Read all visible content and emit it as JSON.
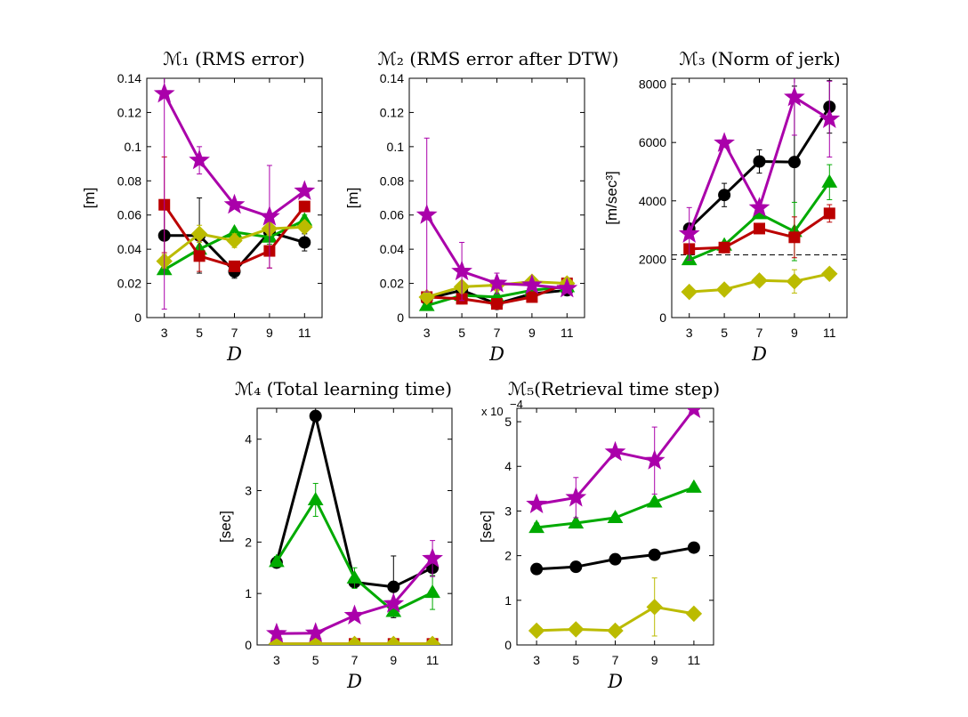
{
  "chart_data": [
    {
      "type": "line",
      "title": "ℳ₁ (RMS error)",
      "xlabel": "D",
      "ylabel": "[m]",
      "ylim": [
        0,
        0.14
      ],
      "yticks": [
        "0",
        "0.02",
        "0.04",
        "0.06",
        "0.08",
        "0.1",
        "0.12",
        "0.14"
      ],
      "yticks_values": [
        0,
        0.02,
        0.04,
        0.06,
        0.08,
        0.1,
        0.12,
        0.14
      ],
      "x": [
        3,
        5,
        7,
        9,
        11
      ],
      "xticks": [
        "3",
        "5",
        "7",
        "9",
        "11"
      ],
      "series": [
        {
          "marker": "circle",
          "color": "#000000",
          "values": [
            0.048,
            0.048,
            0.027,
            0.05,
            0.044
          ],
          "err": [
            0.02,
            0.022,
            0.004,
            0.005,
            0.005
          ]
        },
        {
          "marker": "triangle",
          "color": "#00AA00",
          "values": [
            0.028,
            0.04,
            0.05,
            0.047,
            0.057
          ],
          "err": [
            0,
            0,
            0,
            0.004,
            0.003
          ]
        },
        {
          "marker": "square",
          "color": "#BB0000",
          "values": [
            0.066,
            0.036,
            0.03,
            0.039,
            0.065
          ],
          "err": [
            0.028,
            0.009,
            0.003,
            0.01,
            0.003
          ]
        },
        {
          "marker": "diamond",
          "color": "#BBBB00",
          "values": [
            0.033,
            0.049,
            0.045,
            0.052,
            0.053
          ],
          "err": [
            0.004,
            0.005,
            0.004,
            0.004,
            0.003
          ]
        },
        {
          "marker": "star",
          "color": "#AA00AA",
          "values": [
            0.131,
            0.092,
            0.066,
            0.059,
            0.074
          ],
          "err": [
            0.126,
            0.008,
            0,
            0.03,
            0.002
          ]
        }
      ]
    },
    {
      "type": "line",
      "title": "ℳ₂ (RMS error after DTW)",
      "xlabel": "D",
      "ylabel": "[m]",
      "ylim": [
        0,
        0.14
      ],
      "yticks": [
        "0",
        "0.02",
        "0.04",
        "0.06",
        "0.08",
        "0.1",
        "0.12",
        "0.14"
      ],
      "yticks_values": [
        0,
        0.02,
        0.04,
        0.06,
        0.08,
        0.1,
        0.12,
        0.14
      ],
      "x": [
        3,
        5,
        7,
        9,
        11
      ],
      "xticks": [
        "3",
        "5",
        "7",
        "9",
        "11"
      ],
      "series": [
        {
          "marker": "circle",
          "color": "#000000",
          "values": [
            0.011,
            0.016,
            0.008,
            0.014,
            0.016
          ],
          "err": [
            0,
            0,
            0,
            0,
            0
          ]
        },
        {
          "marker": "triangle",
          "color": "#00AA00",
          "values": [
            0.007,
            0.013,
            0.012,
            0.016,
            0.018
          ],
          "err": [
            0,
            0,
            0,
            0,
            0
          ]
        },
        {
          "marker": "square",
          "color": "#BB0000",
          "values": [
            0.012,
            0.011,
            0.008,
            0.012,
            0.02
          ],
          "err": [
            0.003,
            0.003,
            0,
            0,
            0.003
          ]
        },
        {
          "marker": "diamond",
          "color": "#BBBB00",
          "values": [
            0.012,
            0.018,
            0.019,
            0.021,
            0.02
          ],
          "err": [
            0,
            0,
            0,
            0,
            0
          ]
        },
        {
          "marker": "star",
          "color": "#AA00AA",
          "values": [
            0.06,
            0.027,
            0.02,
            0.019,
            0.017
          ],
          "err": [
            0.045,
            0.017,
            0.006,
            0,
            0
          ]
        }
      ]
    },
    {
      "type": "line",
      "title": "ℳ₃ (Norm of jerk)",
      "xlabel": "D",
      "ylabel": "[m/sec³]",
      "ylim": [
        0,
        8200
      ],
      "yticks": [
        "0",
        "2000",
        "4000",
        "6000",
        "8000"
      ],
      "yticks_values": [
        0,
        2000,
        4000,
        6000,
        8000
      ],
      "x": [
        3,
        5,
        7,
        9,
        11
      ],
      "xticks": [
        "3",
        "5",
        "7",
        "9",
        "11"
      ],
      "hline": 2150,
      "series": [
        {
          "marker": "circle",
          "color": "#000000",
          "values": [
            3050,
            4200,
            5350,
            5330,
            7220
          ],
          "err": [
            100,
            400,
            400,
            2600,
            900
          ]
        },
        {
          "marker": "triangle",
          "color": "#00AA00",
          "values": [
            1980,
            2480,
            3560,
            2950,
            4640
          ],
          "err": [
            0,
            0,
            0,
            1000,
            600
          ]
        },
        {
          "marker": "square",
          "color": "#BB0000",
          "values": [
            2350,
            2400,
            3050,
            2750,
            3570
          ],
          "err": [
            0,
            0,
            0,
            700,
            300
          ]
        },
        {
          "marker": "diamond",
          "color": "#BBBB00",
          "values": [
            880,
            960,
            1270,
            1240,
            1500
          ],
          "err": [
            0,
            0,
            0,
            400,
            0
          ]
        },
        {
          "marker": "star",
          "color": "#AA00AA",
          "values": [
            2870,
            5980,
            3760,
            7550,
            6800
          ],
          "err": [
            900,
            0,
            0,
            1300,
            1300
          ]
        }
      ]
    },
    {
      "type": "line",
      "title": "ℳ₄ (Total learning time)",
      "xlabel": "D",
      "ylabel": "[sec]",
      "ylim": [
        0,
        4.6
      ],
      "yticks": [
        "0",
        "1",
        "2",
        "3",
        "4"
      ],
      "yticks_values": [
        0,
        1,
        2,
        3,
        4
      ],
      "x": [
        3,
        5,
        7,
        9,
        11
      ],
      "xticks": [
        "3",
        "5",
        "7",
        "9",
        "11"
      ],
      "series": [
        {
          "marker": "circle",
          "color": "#000000",
          "values": [
            1.6,
            4.45,
            1.22,
            1.13,
            1.5
          ],
          "err": [
            0,
            0,
            0,
            0.6,
            0.15
          ]
        },
        {
          "marker": "triangle",
          "color": "#00AA00",
          "values": [
            1.62,
            2.82,
            1.3,
            0.65,
            1.02
          ],
          "err": [
            0.1,
            0.32,
            0.2,
            0,
            0.33
          ]
        },
        {
          "marker": "square",
          "color": "#BB0000",
          "values": [
            0.02,
            0.02,
            0.02,
            0.02,
            0.02
          ],
          "err": [
            0,
            0,
            0,
            0,
            0
          ]
        },
        {
          "marker": "diamond",
          "color": "#BBBB00",
          "values": [
            0.02,
            0.02,
            0.02,
            0.02,
            0.02
          ],
          "err": [
            0,
            0,
            0,
            0,
            0
          ]
        },
        {
          "marker": "star",
          "color": "#AA00AA",
          "values": [
            0.22,
            0.23,
            0.57,
            0.8,
            1.68
          ],
          "err": [
            0,
            0,
            0,
            0,
            0.35
          ]
        }
      ]
    },
    {
      "type": "line",
      "title": "ℳ₅(Retrieval time step)",
      "xlabel": "D",
      "ylabel": "[sec]",
      "ylim": [
        0,
        5.3
      ],
      "multiplier": "x 10",
      "multiplier_exp": "−4",
      "yticks": [
        "0",
        "1",
        "2",
        "3",
        "4",
        "5"
      ],
      "yticks_values": [
        0,
        1,
        2,
        3,
        4,
        5
      ],
      "x": [
        3,
        5,
        7,
        9,
        11
      ],
      "xticks": [
        "3",
        "5",
        "7",
        "9",
        "11"
      ],
      "series": [
        {
          "marker": "circle",
          "color": "#000000",
          "values": [
            1.7,
            1.75,
            1.92,
            2.02,
            2.18
          ],
          "err": [
            0,
            0,
            0,
            0,
            0
          ]
        },
        {
          "marker": "triangle",
          "color": "#00AA00",
          "values": [
            2.63,
            2.73,
            2.85,
            3.2,
            3.53
          ],
          "err": [
            0.1,
            0,
            0,
            0,
            0
          ]
        },
        {
          "marker": "diamond",
          "color": "#BBBB00",
          "values": [
            0.32,
            0.35,
            0.32,
            0.85,
            0.7
          ],
          "err": [
            0,
            0,
            0,
            0.65,
            0
          ]
        },
        {
          "marker": "star",
          "color": "#AA00AA",
          "values": [
            3.15,
            3.3,
            4.32,
            4.13,
            5.28
          ],
          "err": [
            0,
            0.45,
            0,
            0.75,
            0
          ]
        }
      ]
    }
  ]
}
